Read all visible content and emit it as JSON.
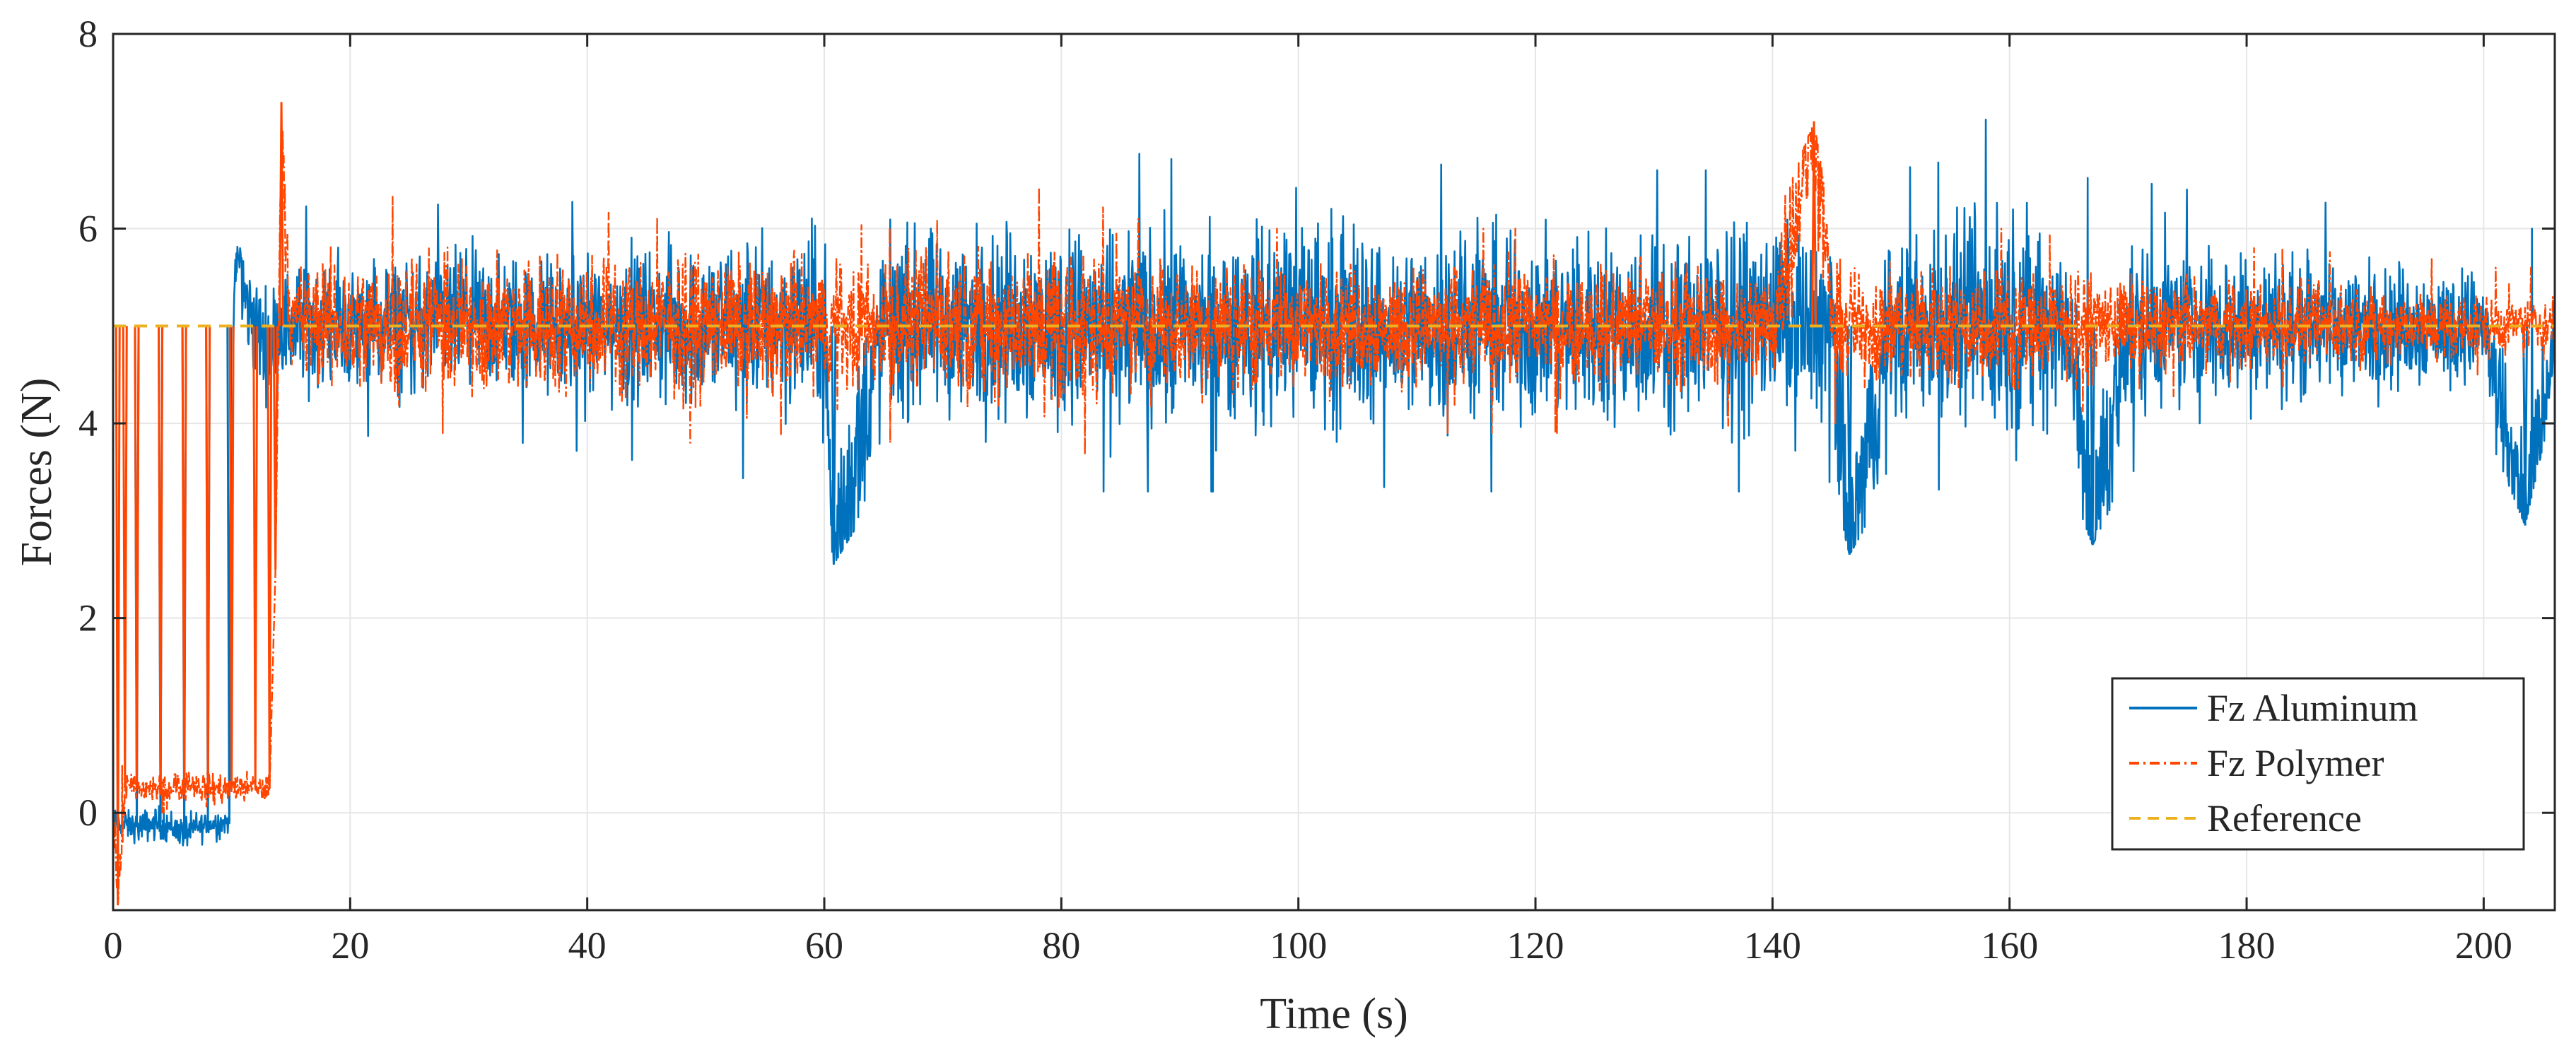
{
  "chart_data": {
    "type": "line",
    "xlabel": "Time (s)",
    "ylabel": "Forces (N)",
    "xlim": [
      0,
      206
    ],
    "ylim": [
      -1,
      8
    ],
    "x_ticks": [
      0,
      20,
      40,
      60,
      80,
      100,
      120,
      140,
      160,
      180,
      200
    ],
    "y_ticks": [
      0,
      2,
      4,
      6,
      8
    ],
    "grid": true,
    "legend_position": "bottom-right",
    "series": [
      {
        "name": "Fz Aluminum",
        "color": "#0072BD",
        "line_style": "solid",
        "x": [
          0,
          2,
          4,
          6,
          8,
          9.8,
          10.2,
          10.6,
          11,
          12,
          13,
          14,
          15,
          17,
          20,
          25,
          30,
          35,
          40,
          45,
          50,
          55,
          60,
          60.8,
          65,
          70,
          75,
          80,
          85,
          90,
          95,
          100,
          105,
          110,
          115,
          120,
          125,
          130,
          135,
          140,
          145,
          146.5,
          150,
          155,
          160,
          165,
          167,
          170,
          175,
          180,
          185,
          190,
          195,
          200,
          203.5,
          206
        ],
        "y": [
          -0.1,
          -0.15,
          -0.1,
          -0.2,
          -0.12,
          -0.1,
          5.4,
          5.8,
          5.3,
          5.0,
          4.8,
          5.0,
          5.0,
          5.05,
          5.0,
          5.0,
          5.05,
          5.0,
          5.0,
          5.0,
          5.0,
          5.05,
          5.0,
          2.55,
          5.0,
          5.0,
          5.05,
          5.0,
          5.0,
          5.0,
          5.0,
          5.05,
          5.0,
          5.0,
          5.0,
          5.0,
          5.0,
          5.0,
          5.0,
          5.05,
          5.0,
          2.65,
          5.0,
          5.0,
          5.05,
          5.0,
          2.75,
          5.0,
          5.0,
          5.0,
          5.0,
          5.0,
          5.0,
          5.0,
          2.95,
          5.0
        ],
        "envelope_upper": [
          0.05,
          0.1,
          0.1,
          0.05,
          0.05,
          0.1,
          5.6,
          5.9,
          5.7,
          5.6,
          5.8,
          6.0,
          6.1,
          6.3,
          6.1,
          6.2,
          6.3,
          6.2,
          6.3,
          6.3,
          6.4,
          6.5,
          6.6,
          6.6,
          6.6,
          6.6,
          6.7,
          6.7,
          6.8,
          6.7,
          6.7,
          7.4,
          6.7,
          6.7,
          6.6,
          6.6,
          6.7,
          6.6,
          6.6,
          6.7,
          6.6,
          6.6,
          6.6,
          6.7,
          7.4,
          6.6,
          6.5,
          6.5,
          6.4,
          6.4,
          6.3,
          6.2,
          6.1,
          6.0,
          6.0,
          6.0
        ],
        "envelope_lower": [
          -0.4,
          -0.45,
          -0.5,
          -0.55,
          -0.5,
          -0.4,
          5.0,
          4.4,
          4.2,
          3.7,
          4.0,
          4.1,
          4.1,
          4.0,
          3.9,
          3.8,
          3.8,
          3.8,
          3.7,
          3.6,
          3.5,
          3.4,
          3.3,
          2.55,
          3.4,
          3.4,
          3.3,
          3.3,
          3.3,
          3.3,
          3.3,
          3.3,
          3.3,
          3.4,
          3.3,
          3.3,
          3.4,
          3.3,
          3.3,
          3.3,
          3.4,
          2.65,
          3.4,
          3.3,
          3.3,
          3.4,
          2.75,
          3.5,
          3.6,
          3.7,
          3.8,
          3.9,
          4.0,
          4.0,
          2.95,
          4.3
        ]
      },
      {
        "name": "Fz Polymer",
        "color": "#FF4500",
        "line_style": "dash-dot",
        "x": [
          0,
          0.4,
          1,
          2,
          4,
          6,
          8,
          10,
          12,
          13.2,
          13.7,
          14.2,
          14.6,
          15,
          17,
          20,
          25,
          30,
          35,
          40,
          45,
          50,
          55,
          60,
          65,
          70,
          75,
          80,
          85,
          90,
          95,
          100,
          105,
          110,
          115,
          120,
          125,
          130,
          135,
          140,
          143.5,
          145,
          150,
          155,
          160,
          165,
          170,
          175,
          180,
          185,
          190,
          195,
          200,
          206
        ],
        "y": [
          0.1,
          -0.95,
          0.25,
          0.25,
          0.25,
          0.3,
          0.25,
          0.25,
          0.25,
          0.25,
          2.5,
          7.3,
          6.0,
          5.0,
          5.05,
          5.0,
          5.0,
          5.0,
          5.0,
          5.05,
          5.0,
          5.0,
          5.0,
          5.0,
          5.0,
          5.05,
          5.0,
          5.0,
          5.0,
          5.0,
          5.0,
          5.0,
          5.0,
          5.0,
          5.0,
          5.05,
          5.0,
          5.0,
          5.0,
          5.0,
          7.1,
          5.0,
          5.0,
          5.0,
          5.0,
          5.0,
          5.0,
          5.0,
          5.0,
          5.0,
          5.0,
          5.0,
          5.0,
          5.0
        ],
        "envelope_upper": [
          0.3,
          0.3,
          0.6,
          0.55,
          0.6,
          0.6,
          0.6,
          0.55,
          0.5,
          0.5,
          2.5,
          7.3,
          6.2,
          6.2,
          6.3,
          6.4,
          6.3,
          6.2,
          6.3,
          6.2,
          6.1,
          6.2,
          6.3,
          6.1,
          6.0,
          6.1,
          6.3,
          6.5,
          6.1,
          6.1,
          6.0,
          6.0,
          6.0,
          6.0,
          6.0,
          6.0,
          6.0,
          6.0,
          6.0,
          6.0,
          7.1,
          6.0,
          6.0,
          6.0,
          6.0,
          5.9,
          5.9,
          5.9,
          5.8,
          5.8,
          5.7,
          5.7,
          5.6,
          5.6
        ],
        "envelope_lower": [
          -0.1,
          -0.95,
          0.0,
          -0.05,
          0.0,
          0.0,
          0.0,
          0.0,
          0.0,
          0.0,
          2.5,
          5.5,
          4.4,
          4.2,
          4.1,
          4.0,
          3.9,
          3.9,
          3.9,
          3.8,
          3.8,
          3.8,
          3.9,
          3.8,
          3.8,
          3.8,
          3.7,
          3.6,
          3.8,
          3.8,
          3.9,
          3.9,
          3.9,
          3.9,
          3.9,
          3.9,
          3.9,
          3.9,
          4.0,
          3.9,
          4.0,
          4.0,
          4.0,
          4.0,
          4.0,
          4.1,
          4.2,
          4.3,
          4.3,
          4.4,
          4.4,
          4.5,
          4.5,
          4.6
        ]
      },
      {
        "name": "Reference",
        "color": "#EDB120",
        "line_style": "dashed",
        "x": [
          0,
          206
        ],
        "y": [
          5,
          5
        ]
      }
    ]
  }
}
